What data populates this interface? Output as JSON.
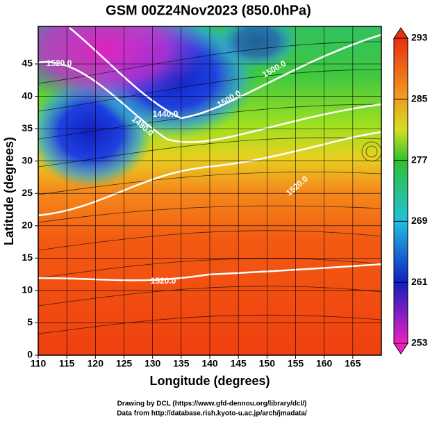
{
  "title": "GSM 00Z24Nov2023 (850.0hPa)",
  "x_axis": {
    "label": "Longitude (degrees)",
    "lim": [
      110,
      170
    ],
    "ticks": [
      110,
      115,
      120,
      125,
      130,
      135,
      140,
      145,
      150,
      155,
      160,
      165
    ]
  },
  "y_axis": {
    "label": "Latitude  (degrees)",
    "lim": [
      0,
      50.8
    ],
    "ticks": [
      0,
      5,
      10,
      15,
      20,
      25,
      30,
      35,
      40,
      45
    ]
  },
  "colorbar": {
    "lim": [
      253,
      293
    ],
    "ticks": [
      253,
      261,
      269,
      277,
      285,
      293
    ]
  },
  "contour_labels": [
    "1520.0",
    "1480.0",
    "1440.0",
    "1500.0",
    "1500.0",
    "1520.0",
    "1520.0"
  ],
  "credits": [
    "Drawing by DCL (https://www.gfd-dennou.org/library/dcl/)",
    "Data from http://database.rish.kyoto-u.ac.jp/arch/jmadata/"
  ]
}
